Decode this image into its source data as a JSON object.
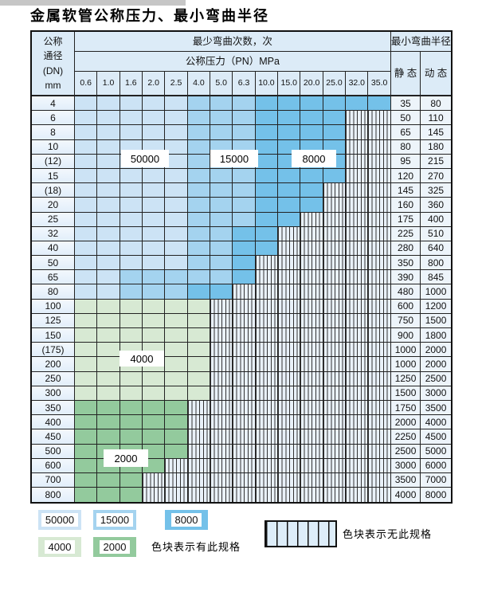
{
  "page_title": "金属软管公称压力、最小弯曲半径",
  "table": {
    "corner_header_lines": [
      "公称",
      "通径",
      "(DN)",
      "mm"
    ],
    "bend_cycles_header": "最少弯曲次数，次",
    "pressure_header": "公称压力（PN）MPa",
    "radius_header": "最小弯曲半径",
    "static_header": "静 态",
    "dynamic_header": "动 态",
    "pressure_columns": [
      "0.6",
      "1.0",
      "1.6",
      "2.0",
      "2.5",
      "4.0",
      "5.0",
      "6.3",
      "10.0",
      "15.0",
      "20.0",
      "25.0",
      "32.0",
      "35.0"
    ],
    "zone_cycle_values": {
      "light_blue": "50000",
      "medium_blue": "15000",
      "dark_blue": "8000",
      "light_green": "4000",
      "dark_green": "2000"
    },
    "rows": [
      {
        "dn": "4",
        "type": "blue",
        "medium_from": 6,
        "dark_from": 9,
        "na_from": 15,
        "static": "35",
        "dynamic": "80"
      },
      {
        "dn": "6",
        "type": "blue",
        "medium_from": 6,
        "dark_from": 9,
        "na_from": 13,
        "static": "50",
        "dynamic": "110"
      },
      {
        "dn": "8",
        "type": "blue",
        "medium_from": 6,
        "dark_from": 9,
        "na_from": 13,
        "static": "65",
        "dynamic": "145"
      },
      {
        "dn": "10",
        "type": "blue",
        "medium_from": 6,
        "dark_from": 9,
        "na_from": 13,
        "static": "80",
        "dynamic": "180"
      },
      {
        "dn": "(12)",
        "type": "blue",
        "medium_from": 6,
        "dark_from": 9,
        "na_from": 13,
        "static": "95",
        "dynamic": "215"
      },
      {
        "dn": "15",
        "type": "blue",
        "medium_from": 6,
        "dark_from": 9,
        "na_from": 13,
        "static": "120",
        "dynamic": "270"
      },
      {
        "dn": "(18)",
        "type": "blue",
        "medium_from": 6,
        "dark_from": 9,
        "na_from": 12,
        "static": "145",
        "dynamic": "325"
      },
      {
        "dn": "20",
        "type": "blue",
        "medium_from": 6,
        "dark_from": 9,
        "na_from": 12,
        "static": "160",
        "dynamic": "360"
      },
      {
        "dn": "25",
        "type": "blue",
        "medium_from": 6,
        "dark_from": 9,
        "na_from": 11,
        "static": "175",
        "dynamic": "400"
      },
      {
        "dn": "32",
        "type": "blue",
        "medium_from": 6,
        "dark_from": 8,
        "na_from": 10,
        "static": "225",
        "dynamic": "510"
      },
      {
        "dn": "40",
        "type": "blue",
        "medium_from": 6,
        "dark_from": 8,
        "na_from": 10,
        "static": "280",
        "dynamic": "640"
      },
      {
        "dn": "50",
        "type": "blue",
        "medium_from": 6,
        "dark_from": 8,
        "na_from": 9,
        "static": "350",
        "dynamic": "800"
      },
      {
        "dn": "65",
        "type": "blue",
        "medium_from": 3,
        "dark_from": 8,
        "na_from": 9,
        "static": "390",
        "dynamic": "845"
      },
      {
        "dn": "80",
        "type": "blue",
        "medium_from": 3,
        "dark_from": 6,
        "na_from": 8,
        "static": "480",
        "dynamic": "1000"
      },
      {
        "dn": "100",
        "type": "green4",
        "na_from": 7,
        "static": "600",
        "dynamic": "1200"
      },
      {
        "dn": "125",
        "type": "green4",
        "na_from": 7,
        "static": "750",
        "dynamic": "1500"
      },
      {
        "dn": "150",
        "type": "green4",
        "na_from": 7,
        "static": "900",
        "dynamic": "1800"
      },
      {
        "dn": "(175)",
        "type": "green4",
        "na_from": 7,
        "static": "1000",
        "dynamic": "2000"
      },
      {
        "dn": "200",
        "type": "green4",
        "na_from": 7,
        "static": "1000",
        "dynamic": "2000"
      },
      {
        "dn": "250",
        "type": "green4",
        "na_from": 7,
        "static": "1250",
        "dynamic": "2500"
      },
      {
        "dn": "300",
        "type": "green4",
        "na_from": 7,
        "static": "1500",
        "dynamic": "3000"
      },
      {
        "dn": "350",
        "type": "green2",
        "na_from": 6,
        "static": "1750",
        "dynamic": "3500"
      },
      {
        "dn": "400",
        "type": "green2",
        "na_from": 6,
        "static": "2000",
        "dynamic": "4000"
      },
      {
        "dn": "450",
        "type": "green2",
        "na_from": 6,
        "static": "2250",
        "dynamic": "4500"
      },
      {
        "dn": "500",
        "type": "green2",
        "na_from": 6,
        "static": "2500",
        "dynamic": "5000"
      },
      {
        "dn": "600",
        "type": "green2",
        "na_from": 5,
        "static": "3000",
        "dynamic": "6000"
      },
      {
        "dn": "700",
        "type": "green2",
        "na_from": 4,
        "static": "3500",
        "dynamic": "7000"
      },
      {
        "dn": "800",
        "type": "green2",
        "na_from": 4,
        "static": "4000",
        "dynamic": "8000"
      }
    ],
    "zone_labels": [
      "50000",
      "15000",
      "8000",
      "4000",
      "2000"
    ]
  },
  "legend": {
    "swatches": [
      {
        "label": "50000",
        "color_key": "blue_50000"
      },
      {
        "label": "15000",
        "color_key": "blue_15000"
      },
      {
        "label": "8000",
        "color_key": "blue_8000"
      },
      {
        "label": "4000",
        "color_key": "green_4000"
      },
      {
        "label": "2000",
        "color_key": "green_2000"
      }
    ],
    "has_spec_text": "色块表示有此规格",
    "no_spec_text": "色块表示无此规格"
  },
  "colors": {
    "blue_50000": "#cce3f5",
    "blue_15000": "#a4d3ef",
    "blue_8000": "#74c1e9",
    "green_4000": "#d7e9d3",
    "green_2000": "#93ca9d",
    "na_bg": "#e9f1f9",
    "header_bg": "#dcebf7",
    "label_col_bg": "#e2eefa",
    "value_col_bg": "#edf4fa"
  }
}
